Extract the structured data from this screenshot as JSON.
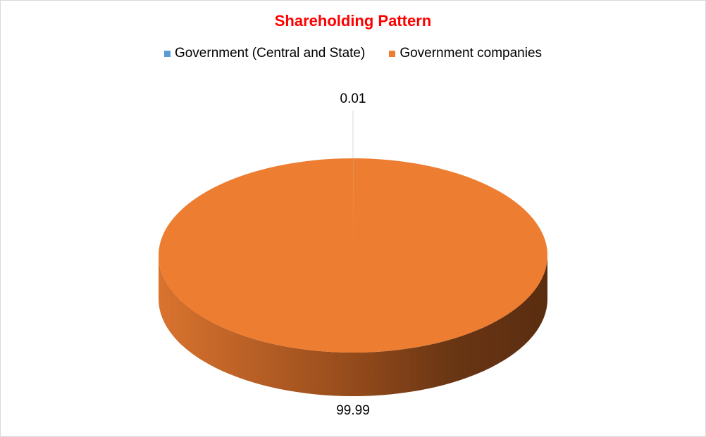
{
  "chart_data": {
    "type": "pie",
    "title": "Shareholding Pattern",
    "categories": [
      "Government (Central and State)",
      "Government companies"
    ],
    "values": [
      0.01,
      99.99
    ],
    "data_labels": [
      "0.01",
      "99.99"
    ],
    "colors": [
      "#5b9bd5",
      "#ed7d31"
    ],
    "legend_position": "top",
    "style": "3d"
  }
}
